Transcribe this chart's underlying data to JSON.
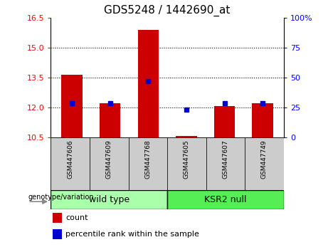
{
  "title": "GDS5248 / 1442690_at",
  "samples": [
    "GSM447606",
    "GSM447609",
    "GSM447768",
    "GSM447605",
    "GSM447607",
    "GSM447749"
  ],
  "bar_values": [
    13.62,
    12.21,
    15.88,
    10.56,
    12.05,
    12.21
  ],
  "dot_values": [
    12.22,
    12.22,
    13.32,
    11.88,
    12.22,
    12.22
  ],
  "ylim": [
    10.5,
    16.5
  ],
  "yticks": [
    10.5,
    12.0,
    13.5,
    15.0,
    16.5
  ],
  "right_ticks_pct": [
    0,
    25,
    50,
    75,
    100
  ],
  "right_tick_labels": [
    "0",
    "25",
    "50",
    "75",
    "100%"
  ],
  "bar_color": "#cc0000",
  "dot_color": "#0000cc",
  "bar_bottom": 10.5,
  "wild_type_color": "#aaffaa",
  "ksr2_null_color": "#55ee55",
  "sample_box_color": "#cccccc",
  "legend_count_label": "count",
  "legend_percentile_label": "percentile rank within the sample",
  "genotype_label": "genotype/variation",
  "group_label_wild": "wild type",
  "group_label_ksr2": "KSR2 null",
  "title_fontsize": 11,
  "tick_fontsize": 8,
  "label_fontsize": 8,
  "sample_fontsize": 6.5
}
